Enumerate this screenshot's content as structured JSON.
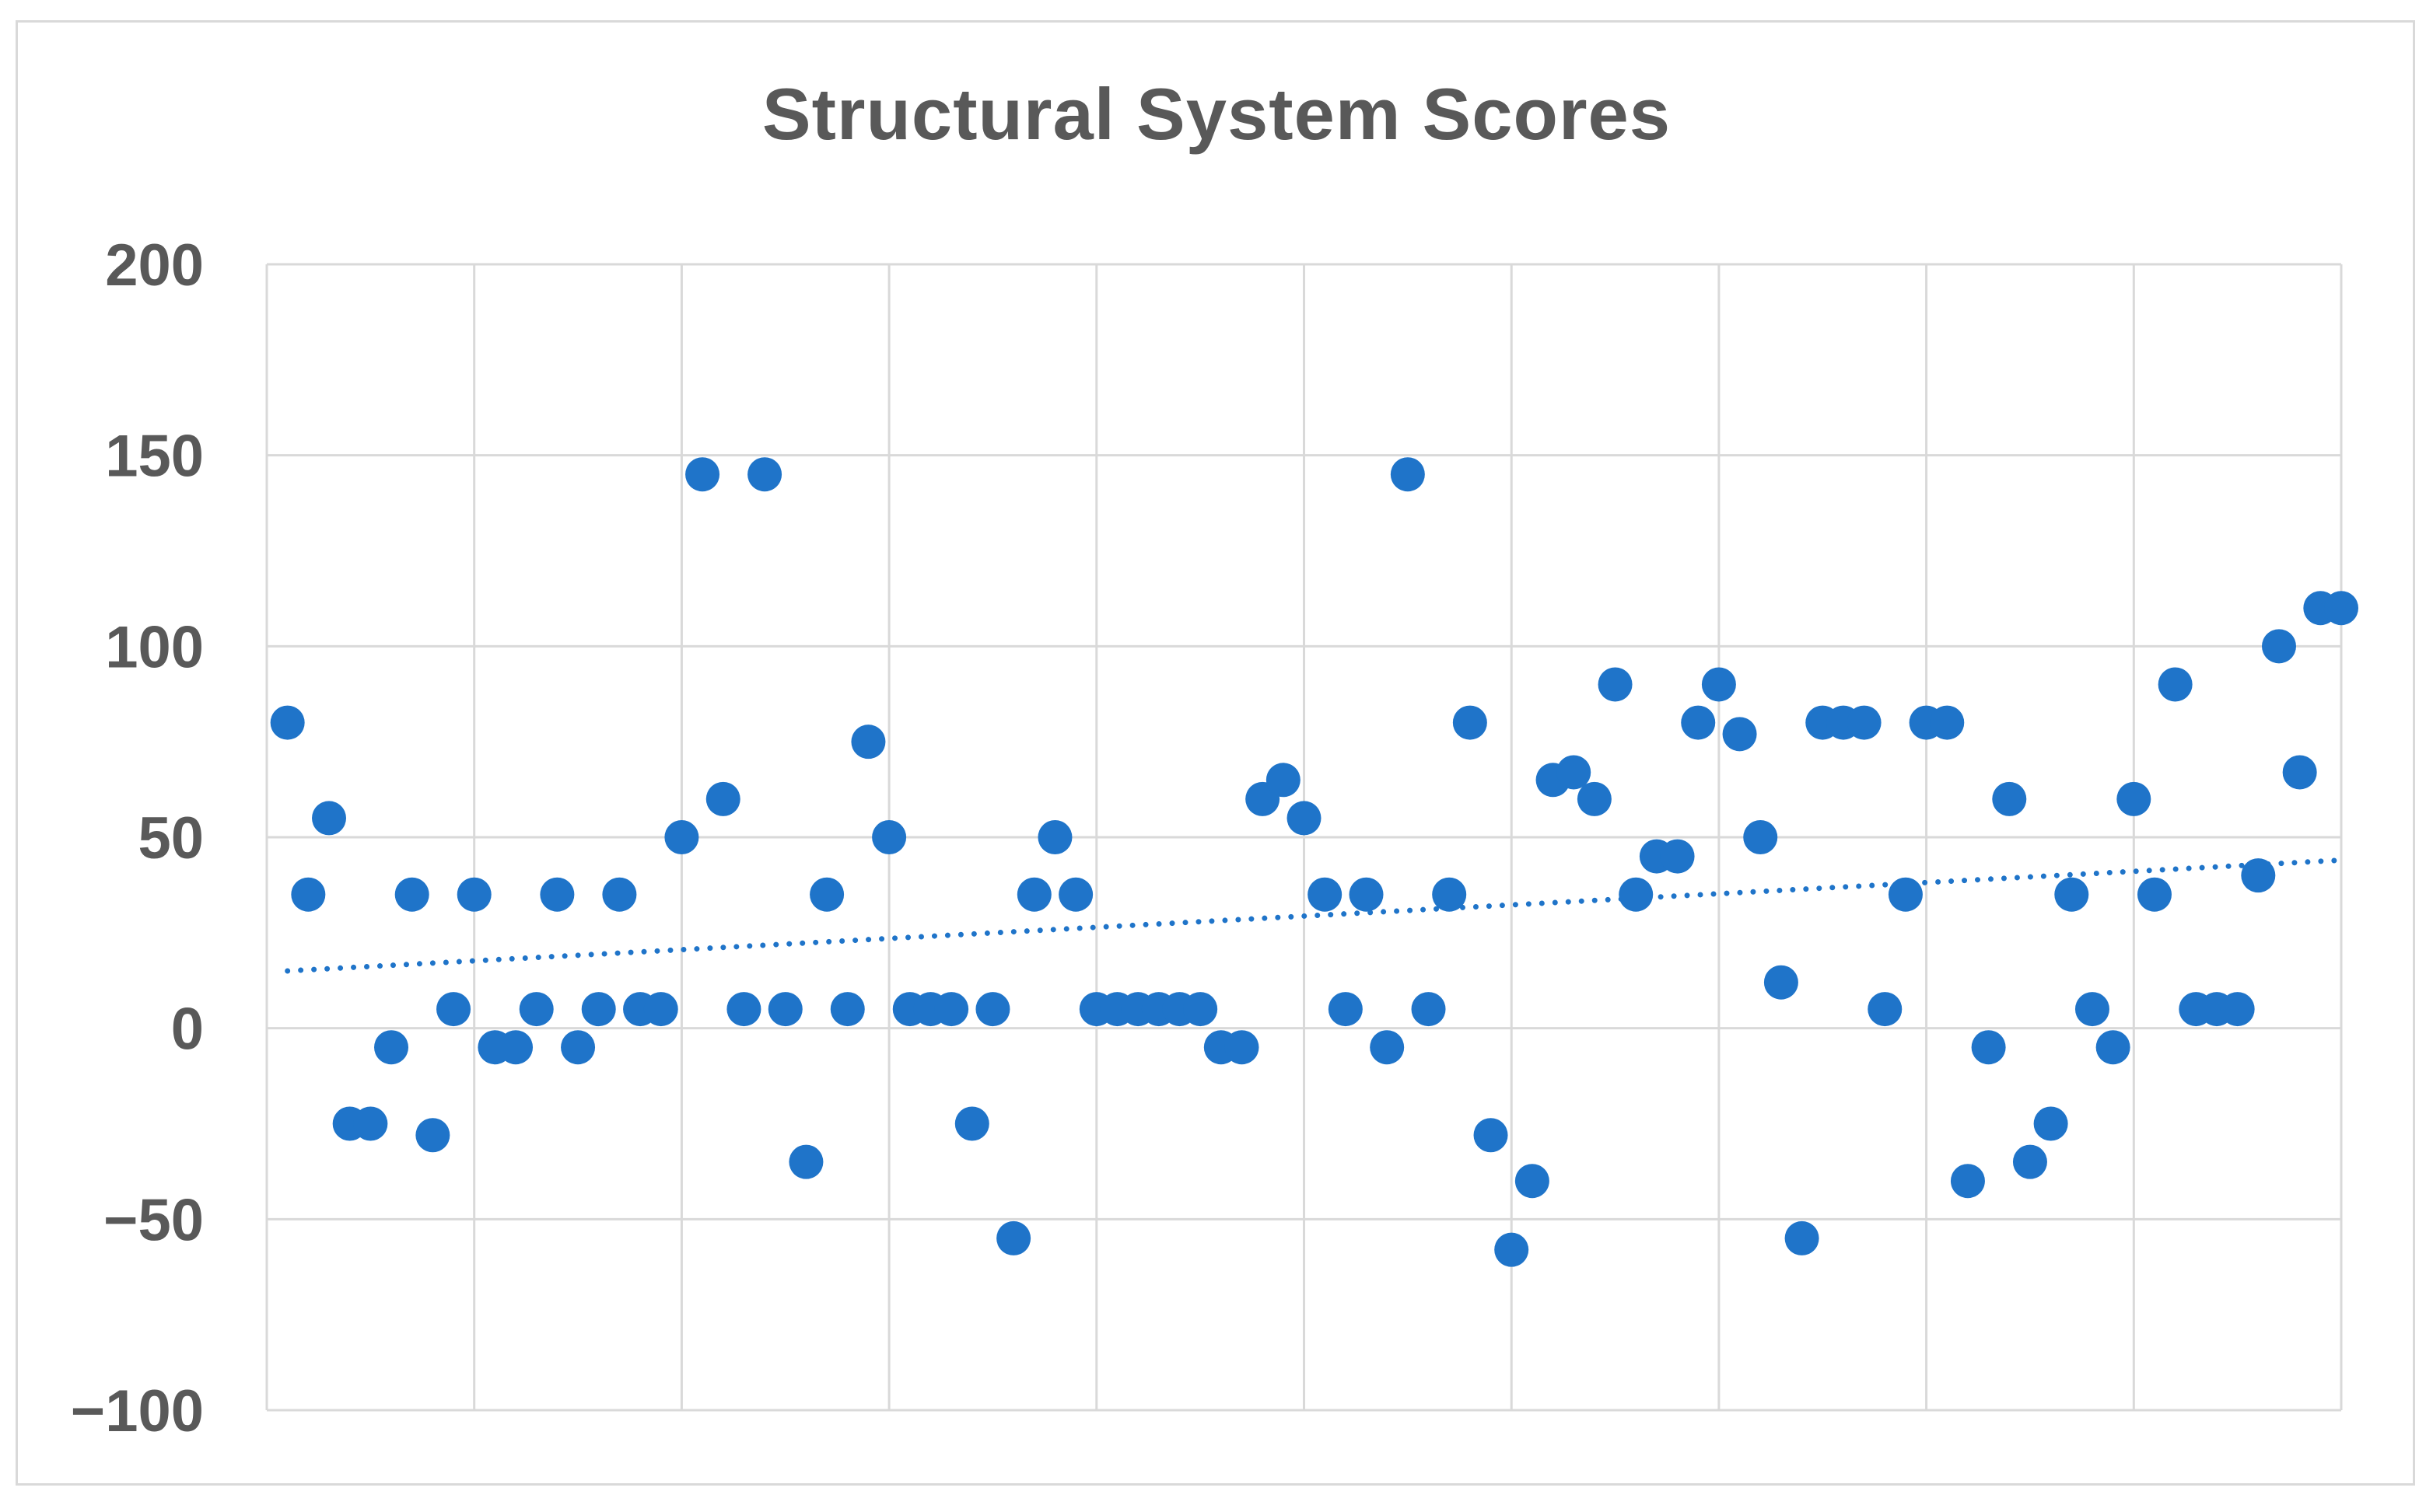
{
  "chart_data": {
    "type": "scatter",
    "title": "Structural System Scores",
    "xlabel": "",
    "ylabel": "",
    "xlim": [
      0,
      100
    ],
    "ylim": [
      -100,
      200
    ],
    "yticks": [
      -100,
      -50,
      0,
      50,
      100,
      150,
      200
    ],
    "yticklabels": [
      "−100",
      "−50",
      "0",
      "50",
      "100",
      "150",
      "200"
    ],
    "grid": true,
    "legend": "none",
    "marker_color": "#1f74c9",
    "gridline_color": "#d9d9d9",
    "axis_label_color": "#595959",
    "series": [
      {
        "x": [
          1,
          2,
          3,
          4,
          5,
          6,
          7,
          8,
          9,
          10,
          11,
          12,
          13,
          14,
          15,
          16,
          17,
          18,
          19,
          20,
          21,
          22,
          23,
          24,
          25,
          26,
          27,
          28,
          29,
          30,
          31,
          32,
          33,
          34,
          35,
          36,
          37,
          38,
          39,
          40,
          41,
          42,
          43,
          44,
          45,
          46,
          47,
          48,
          49,
          50,
          51,
          52,
          53,
          54,
          55,
          56,
          57,
          58,
          59,
          60,
          61,
          62,
          63,
          64,
          65,
          66,
          67,
          68,
          69,
          70,
          71,
          72,
          73,
          74,
          75,
          76,
          77,
          78,
          79,
          80,
          81,
          82,
          83,
          84,
          85,
          86,
          87,
          88,
          89,
          90,
          91,
          92,
          93,
          94,
          95,
          96,
          97,
          98,
          99,
          100
        ],
        "y": [
          80,
          35,
          55,
          -25,
          -25,
          -5,
          35,
          -28,
          5,
          35,
          -5,
          -5,
          5,
          35,
          -5,
          5,
          35,
          5,
          5,
          50,
          145,
          60,
          5,
          145,
          5,
          -35,
          35,
          5,
          75,
          50,
          5,
          5,
          5,
          -25,
          5,
          -55,
          35,
          50,
          35,
          5,
          5,
          5,
          5,
          5,
          5,
          -5,
          -5,
          60,
          65,
          55,
          35,
          5,
          35,
          -5,
          145,
          5,
          35,
          80,
          -28,
          -58,
          -40,
          65,
          67,
          60,
          90,
          35,
          45,
          45,
          80,
          90,
          77,
          50,
          12,
          -55,
          80,
          80,
          80,
          5,
          35,
          80,
          80,
          -40,
          -5,
          60,
          -35,
          -25,
          35,
          5,
          -5,
          60,
          35,
          90,
          5,
          5,
          5,
          40,
          100,
          67,
          110,
          110
        ]
      }
    ],
    "trendline": {
      "type": "linear",
      "style": "dotted",
      "y_start": 15,
      "y_end": 44
    }
  }
}
